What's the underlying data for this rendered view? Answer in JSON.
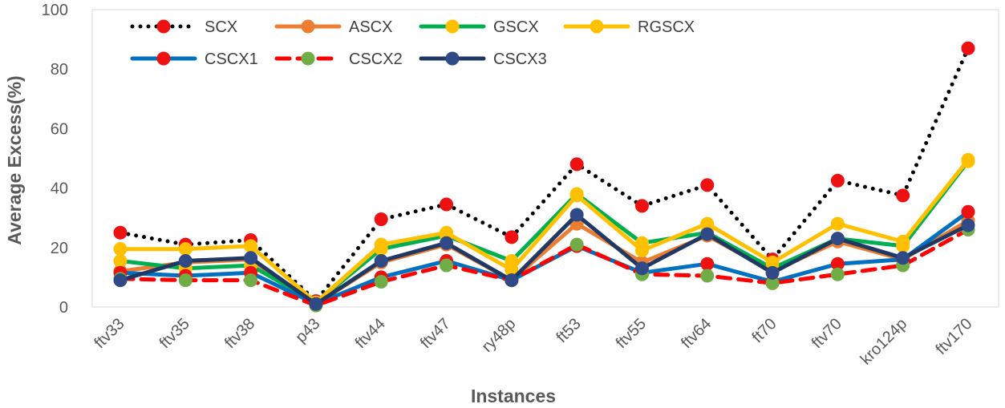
{
  "chart_data": {
    "type": "line",
    "title": "",
    "xlabel": "Instances",
    "ylabel": "Average Excess(%)",
    "ylim": [
      0,
      100
    ],
    "yticks": [
      0,
      20,
      40,
      60,
      80,
      100
    ],
    "grid": false,
    "legend_position": "top-left",
    "categories": [
      "ftv33",
      "ftv35",
      "ftv38",
      "p43",
      "ftv44",
      "ftv47",
      "ry48p",
      "ft53",
      "ftv55",
      "ftv64",
      "ft70",
      "ftv70",
      "kro124p",
      "ftv170"
    ],
    "series": [
      {
        "name": "SCX",
        "line_color": "#000000",
        "marker_color": "#ee1111",
        "dash": "dotted",
        "values": [
          25,
          21,
          22.5,
          2,
          29.5,
          34.5,
          23.5,
          48,
          34,
          41,
          16,
          42.5,
          37.5,
          87
        ]
      },
      {
        "name": "ASCX",
        "line_color": "#ed7d31",
        "marker_color": "#ed7d31",
        "dash": "solid",
        "values": [
          12,
          15,
          16,
          1,
          15,
          21,
          9,
          28,
          15,
          24,
          12,
          22,
          16,
          29
        ]
      },
      {
        "name": "GSCX",
        "line_color": "#00b050",
        "marker_color": "#ffc000",
        "dash": "solid",
        "values": [
          15.5,
          13,
          14,
          1.5,
          19.5,
          24,
          15.5,
          38,
          21.5,
          25,
          13,
          23,
          20.5,
          49
        ]
      },
      {
        "name": "RGSCX",
        "line_color": "#ffc000",
        "marker_color": "#ffc000",
        "dash": "solid",
        "values": [
          19.5,
          19.5,
          20.5,
          1.5,
          21,
          25,
          12.5,
          37.5,
          19,
          28,
          15,
          28,
          22,
          49.5
        ]
      },
      {
        "name": "CSCX1",
        "line_color": "#0070c0",
        "marker_color": "#ee1111",
        "dash": "solid",
        "values": [
          11.5,
          10.5,
          11.5,
          1,
          10,
          15.5,
          9,
          20.5,
          11.5,
          14.5,
          8.5,
          14.5,
          16,
          32
        ]
      },
      {
        "name": "CSCX2",
        "line_color": "#ff0000",
        "marker_color": "#70ad47",
        "dash": "dashed",
        "values": [
          9.5,
          9,
          9,
          0.5,
          8.5,
          14,
          9,
          21,
          11,
          10.5,
          8,
          11,
          14,
          26
        ]
      },
      {
        "name": "CSCX3",
        "line_color": "#203864",
        "marker_color": "#2f4a86",
        "dash": "solid",
        "values": [
          9,
          15.5,
          16.5,
          1,
          15.5,
          21.5,
          9,
          31,
          13,
          24.5,
          11.5,
          23,
          16.5,
          27.5
        ]
      }
    ]
  }
}
